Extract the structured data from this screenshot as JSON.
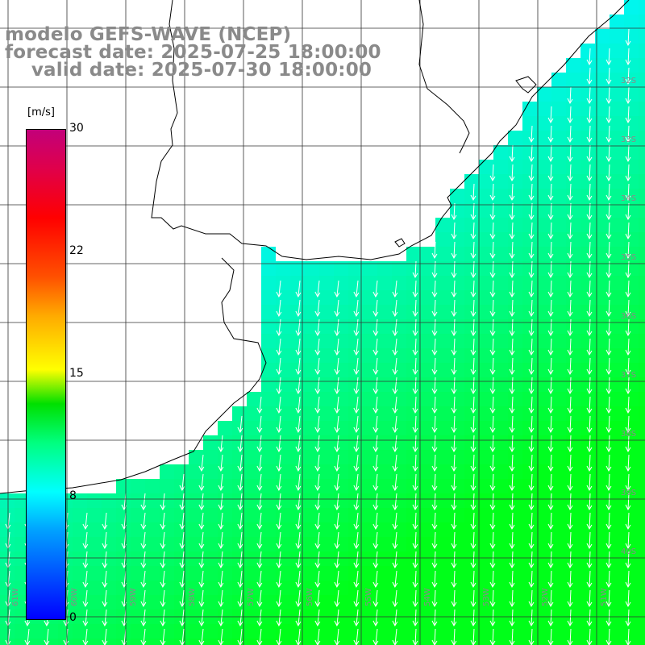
{
  "title": {
    "line1": "modelo GEFS-WAVE (NCEP)",
    "line2": "forecast date: 2025-07-25 18:00:00",
    "line3": "    valid date: 2025-07-30 18:00:00"
  },
  "colorbar": {
    "unit": "[m/s]",
    "ticks": [
      {
        "label": "30",
        "value": 30
      },
      {
        "label": "22",
        "value": 22
      },
      {
        "label": "15",
        "value": 15
      },
      {
        "label": "8",
        "value": 8
      },
      {
        "label": "0",
        "value": 0
      }
    ],
    "colors": [
      "#0000ff",
      "#00a0ff",
      "#00ffff",
      "#00ff80",
      "#00e000",
      "#ffff00",
      "#ff5000",
      "#ff0000",
      "#c2007a"
    ]
  },
  "lat_labels": [
    "32S",
    "33S",
    "34S",
    "35S",
    "36S",
    "37S",
    "38S",
    "39S",
    "40S"
  ],
  "lon_labels": [
    "61W",
    "60W",
    "59W",
    "58W",
    "57W",
    "56W",
    "55W",
    "54W",
    "53W",
    "52W",
    "51W"
  ],
  "colors": {
    "land": "#ffffff",
    "coast": "#000000",
    "grid": "#333333",
    "arrow": "#ffffff",
    "label": "#8a8a8a"
  }
}
